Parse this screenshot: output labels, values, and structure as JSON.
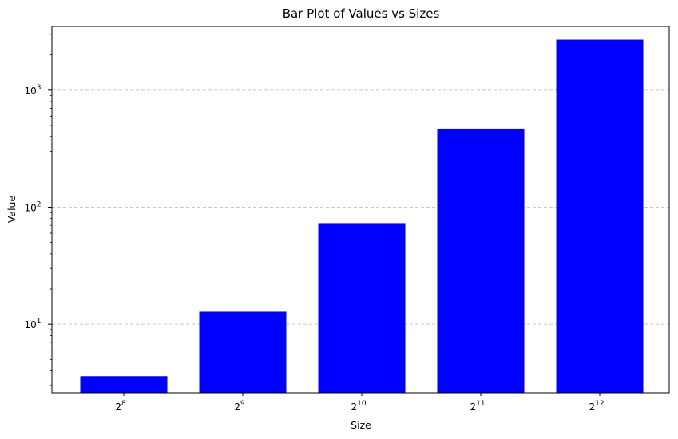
{
  "chart_data": {
    "type": "bar",
    "title": "Bar Plot of Values vs Sizes",
    "xlabel": "Size",
    "ylabel": "Value",
    "yscale": "log",
    "ylim": [
      2.6,
      3500
    ],
    "grid": "y-major-dashed",
    "bar_color": "#0000ff",
    "grid_color": "#c8c8c8",
    "categories": [
      {
        "base": "2",
        "exp": "8"
      },
      {
        "base": "2",
        "exp": "9"
      },
      {
        "base": "2",
        "exp": "10"
      },
      {
        "base": "2",
        "exp": "11"
      },
      {
        "base": "2",
        "exp": "12"
      }
    ],
    "values": [
      3.6,
      12.8,
      72,
      470,
      2700
    ],
    "y_ticks": [
      {
        "value": 10,
        "base": "10",
        "exp": "1"
      },
      {
        "value": 100,
        "base": "10",
        "exp": "2"
      },
      {
        "value": 1000,
        "base": "10",
        "exp": "3"
      }
    ]
  }
}
